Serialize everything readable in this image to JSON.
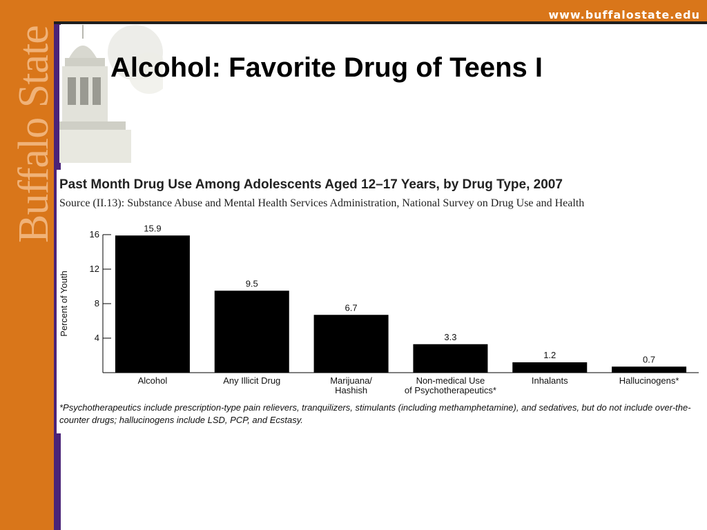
{
  "header": {
    "url": "www.buffalostate.edu"
  },
  "sidebar": {
    "brand": "Buffalo State"
  },
  "slide": {
    "title": "Alcohol: Favorite Drug of Teens I"
  },
  "chart": {
    "title": "Past Month Drug Use Among Adolescents Aged 12–17 Years, by Drug Type, 2007",
    "source": "Source (II.13): Substance Abuse and Mental Health Services Administration, National Survey on Drug Use and Health",
    "note": "*Psychotherapeutics include prescription-type pain relievers, tranquilizers, stimulants (including methamphetamine), and sedatives, but do not include over-the-counter drugs; hallucinogens include LSD, PCP, and Ecstasy."
  },
  "colors": {
    "accent": "#d9761a",
    "line": "#4a2378",
    "bar": "#000000"
  },
  "chart_data": {
    "type": "bar",
    "categories": [
      [
        "Alcohol"
      ],
      [
        "Any Illicit Drug"
      ],
      [
        "Marijuana/",
        "Hashish"
      ],
      [
        "Non-medical Use",
        "of Psychotherapeutics*"
      ],
      [
        "Inhalants"
      ],
      [
        "Hallucinogens*"
      ]
    ],
    "values": [
      15.9,
      9.5,
      6.7,
      3.3,
      1.2,
      0.7
    ],
    "value_labels": [
      "15.9",
      "9.5",
      "6.7",
      "3.3",
      "1.2",
      "0.7"
    ],
    "ylabel": "Percent of Youth",
    "yticks": [
      4,
      8,
      12,
      16
    ],
    "ylim": [
      0,
      16
    ]
  }
}
